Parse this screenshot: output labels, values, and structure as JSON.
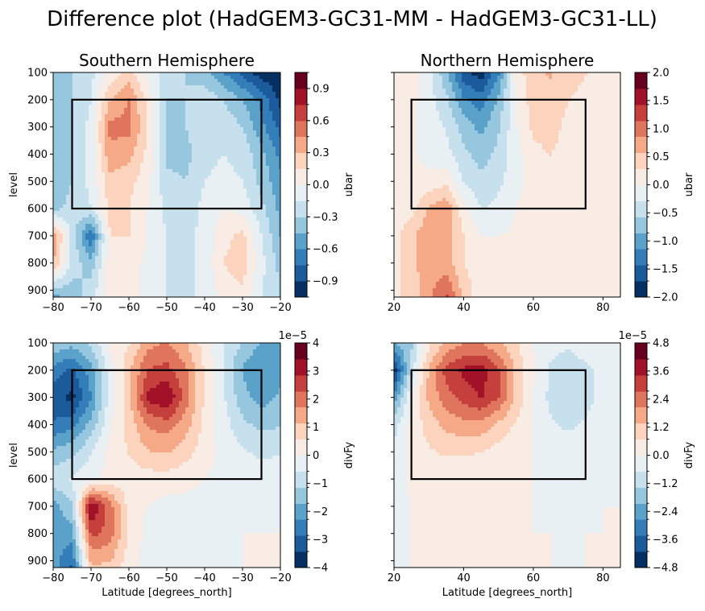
{
  "title": "Difference plot (HadGEM3-GC31-MM - HadGEM3-GC31-LL)",
  "colors": {
    "cmap": [
      "#053061",
      "#2166ac",
      "#4393c3",
      "#92c5de",
      "#d1e5f0",
      "#f7f7f7",
      "#fddbc7",
      "#f4a582",
      "#d6604d",
      "#b2182b",
      "#67001f"
    ],
    "frame": "#000000"
  },
  "chart_data": [
    {
      "type": "contourf",
      "id": "sh_ubar",
      "title": "Southern Hemisphere",
      "xlabel": "",
      "ylabel": "level",
      "xlim": [
        -80,
        -20
      ],
      "ylim": [
        925,
        100
      ],
      "xticks": [
        "-80",
        "-70",
        "-60",
        "-50",
        "-40",
        "-30",
        "-20"
      ],
      "yticks": [
        "100",
        "200",
        "300",
        "400",
        "500",
        "600",
        "700",
        "800",
        "900"
      ],
      "box": {
        "lat": [
          -75,
          -25
        ],
        "level": [
          200,
          600
        ]
      },
      "colorbar": {
        "label": "ubar",
        "range": [
          -1.05,
          1.05
        ],
        "offset": "",
        "ticks": [
          "−0.9",
          "−0.6",
          "−0.3",
          "0.0",
          "0.3",
          "0.6",
          "0.9"
        ],
        "tick_values": [
          -0.9,
          -0.6,
          -0.3,
          0.0,
          0.3,
          0.6,
          0.9
        ]
      },
      "field": {
        "lats": [
          -80,
          -75,
          -70,
          -65,
          -60,
          -55,
          -50,
          -45,
          -40,
          -35,
          -30,
          -25,
          -20
        ],
        "levels": [
          100,
          200,
          300,
          400,
          500,
          600,
          700,
          800,
          925
        ],
        "values": [
          [
            -0.45,
            -0.3,
            -0.2,
            0.05,
            0.2,
            -0.05,
            -0.2,
            -0.3,
            -0.4,
            -0.6,
            -0.8,
            -1.0,
            -1.0
          ],
          [
            -0.45,
            -0.3,
            -0.15,
            0.3,
            0.45,
            0.1,
            -0.3,
            -0.3,
            -0.2,
            -0.3,
            -0.45,
            -0.65,
            -0.95
          ],
          [
            -0.45,
            -0.3,
            -0.1,
            0.5,
            0.5,
            0.15,
            -0.35,
            -0.3,
            -0.2,
            -0.2,
            -0.3,
            -0.55,
            -0.8
          ],
          [
            -0.45,
            -0.3,
            -0.1,
            0.4,
            0.35,
            0.1,
            -0.35,
            -0.35,
            -0.2,
            -0.15,
            -0.2,
            -0.4,
            -0.65
          ],
          [
            -0.4,
            -0.3,
            -0.1,
            0.25,
            0.2,
            0.05,
            -0.25,
            -0.3,
            -0.15,
            -0.1,
            -0.15,
            -0.35,
            -0.55
          ],
          [
            -0.35,
            -0.25,
            -0.15,
            0.2,
            0.15,
            0.0,
            -0.2,
            -0.25,
            -0.1,
            0.0,
            -0.05,
            -0.25,
            -0.5
          ],
          [
            0.45,
            -0.2,
            -0.75,
            0.15,
            0.15,
            0.0,
            -0.15,
            -0.2,
            -0.1,
            0.1,
            0.2,
            -0.15,
            -0.45
          ],
          [
            0.3,
            -0.2,
            -0.4,
            0.1,
            0.1,
            -0.05,
            -0.15,
            -0.2,
            -0.1,
            0.15,
            0.25,
            -0.1,
            -0.35
          ],
          [
            -0.5,
            -0.4,
            -0.2,
            0.1,
            0.1,
            -0.05,
            -0.15,
            -0.2,
            -0.1,
            0.05,
            0.1,
            -0.15,
            -0.3
          ]
        ]
      }
    },
    {
      "type": "contourf",
      "id": "nh_ubar",
      "title": "Northern Hemisphere",
      "xlabel": "",
      "ylabel": "",
      "xlim": [
        20,
        85
      ],
      "ylim": [
        925,
        100
      ],
      "xticks": [
        "20",
        "40",
        "60",
        "80"
      ],
      "yticks": [],
      "box": {
        "lat": [
          25,
          75
        ],
        "level": [
          200,
          600
        ]
      },
      "colorbar": {
        "label": "ubar",
        "range": [
          -2.0,
          2.0
        ],
        "offset": "",
        "ticks": [
          "−2.0",
          "−1.5",
          "−1.0",
          "−0.5",
          "0.0",
          "0.5",
          "1.0",
          "1.5",
          "2.0"
        ],
        "tick_values": [
          -2.0,
          -1.5,
          -1.0,
          -0.5,
          0.0,
          0.5,
          1.0,
          1.5,
          2.0
        ]
      },
      "field": {
        "lats": [
          20,
          25,
          30,
          35,
          40,
          45,
          50,
          55,
          60,
          65,
          70,
          75,
          80,
          85
        ],
        "levels": [
          100,
          200,
          300,
          400,
          500,
          600,
          700,
          800,
          925
        ],
        "values": [
          [
            0.3,
            0.2,
            -0.2,
            -0.8,
            -1.6,
            -1.9,
            -1.2,
            0.1,
            0.5,
            0.6,
            0.4,
            0.3,
            0.2,
            0.1
          ],
          [
            0.2,
            0.1,
            -0.15,
            -0.5,
            -1.1,
            -1.3,
            -0.8,
            0.0,
            0.45,
            0.5,
            0.3,
            0.2,
            0.2,
            0.1
          ],
          [
            0.2,
            0.05,
            -0.15,
            -0.3,
            -0.7,
            -0.95,
            -0.6,
            -0.05,
            0.35,
            0.4,
            0.2,
            0.15,
            0.1,
            0.1
          ],
          [
            0.1,
            0.05,
            -0.1,
            -0.2,
            -0.5,
            -0.7,
            -0.5,
            -0.1,
            0.2,
            0.3,
            0.15,
            0.1,
            0.1,
            0.1
          ],
          [
            0.1,
            0.05,
            0.1,
            0.2,
            -0.3,
            -0.5,
            -0.35,
            -0.1,
            0.15,
            0.2,
            0.1,
            0.1,
            0.1,
            0.1
          ],
          [
            0.1,
            0.15,
            0.6,
            0.8,
            0.1,
            -0.3,
            -0.2,
            0.0,
            0.15,
            0.15,
            0.1,
            0.1,
            0.1,
            0.1
          ],
          [
            0.2,
            0.5,
            0.8,
            0.7,
            0.3,
            0.0,
            0.0,
            0.05,
            0.15,
            0.15,
            0.1,
            0.1,
            0.1,
            0.1
          ],
          [
            0.2,
            0.5,
            0.7,
            0.7,
            0.3,
            0.05,
            0.05,
            0.05,
            0.1,
            0.1,
            0.1,
            0.1,
            0.1,
            0.1
          ],
          [
            0.2,
            0.4,
            0.8,
            1.2,
            0.5,
            0.1,
            0.05,
            0.05,
            0.1,
            0.1,
            0.1,
            0.1,
            0.1,
            0.1
          ]
        ]
      }
    },
    {
      "type": "contourf",
      "id": "sh_divfy",
      "title": "",
      "xlabel": "Latitude [degrees_north]",
      "ylabel": "level",
      "xlim": [
        -80,
        -20
      ],
      "ylim": [
        925,
        100
      ],
      "xticks": [
        "-80",
        "-70",
        "-60",
        "-50",
        "-40",
        "-30",
        "-20"
      ],
      "yticks": [
        "100",
        "200",
        "300",
        "400",
        "500",
        "600",
        "700",
        "800",
        "900"
      ],
      "box": {
        "lat": [
          -75,
          -25
        ],
        "level": [
          200,
          600
        ]
      },
      "colorbar": {
        "label": "divFy",
        "range": [
          -4,
          4
        ],
        "offset": "1e−5",
        "ticks": [
          "−4",
          "−3",
          "−2",
          "−1",
          "0",
          "1",
          "2",
          "3",
          "4"
        ],
        "tick_values": [
          -4,
          -3,
          -2,
          -1,
          0,
          1,
          2,
          3,
          4
        ]
      },
      "field": {
        "lats": [
          -80,
          -75,
          -70,
          -65,
          -60,
          -55,
          -50,
          -45,
          -40,
          -35,
          -30,
          -25,
          -20
        ],
        "levels": [
          100,
          200,
          300,
          400,
          500,
          600,
          700,
          800,
          925
        ],
        "values": [
          [
            -1.2,
            -1.5,
            -1.0,
            0.2,
            0.5,
            1.5,
            1.8,
            1.2,
            0.3,
            -0.5,
            -1.2,
            -1.8,
            -2.0
          ],
          [
            -2.5,
            -3.0,
            -2.0,
            -0.3,
            1.0,
            2.3,
            2.5,
            1.8,
            0.5,
            -0.6,
            -1.8,
            -2.2,
            -2.0
          ],
          [
            -3.2,
            -3.6,
            -2.3,
            -0.3,
            1.0,
            3.0,
            3.5,
            2.0,
            0.5,
            -0.5,
            -1.5,
            -2.0,
            -1.6
          ],
          [
            -2.8,
            -2.5,
            -1.5,
            -0.1,
            0.8,
            1.8,
            2.0,
            1.4,
            0.4,
            -0.3,
            -1.0,
            -1.3,
            -1.2
          ],
          [
            -1.6,
            -1.3,
            -0.6,
            0.2,
            0.6,
            1.1,
            1.2,
            0.8,
            0.3,
            -0.2,
            -0.5,
            -0.7,
            -0.6
          ],
          [
            -0.8,
            -0.5,
            -0.2,
            0.2,
            0.3,
            0.3,
            0.3,
            0.2,
            0.0,
            -0.2,
            -0.3,
            -0.3,
            -0.3
          ],
          [
            -2.0,
            -1.2,
            3.5,
            2.0,
            0.3,
            0.0,
            -0.2,
            -0.2,
            -0.2,
            -0.2,
            -0.1,
            -0.1,
            -0.1
          ],
          [
            -2.0,
            -2.0,
            2.5,
            2.0,
            0.5,
            -0.2,
            -0.4,
            -0.2,
            -0.1,
            -0.1,
            0.0,
            0.0,
            0.0
          ],
          [
            -2.0,
            -3.0,
            1.0,
            1.0,
            0.2,
            -0.2,
            -0.3,
            -0.2,
            -0.1,
            -0.1,
            0.0,
            0.0,
            0.0
          ]
        ]
      }
    },
    {
      "type": "contourf",
      "id": "nh_divfy",
      "title": "",
      "xlabel": "Latitude [degrees_north]",
      "ylabel": "",
      "xlim": [
        20,
        85
      ],
      "ylim": [
        925,
        100
      ],
      "xticks": [
        "20",
        "40",
        "60",
        "80"
      ],
      "yticks": [],
      "box": {
        "lat": [
          25,
          75
        ],
        "level": [
          200,
          600
        ]
      },
      "colorbar": {
        "label": "divFy",
        "range": [
          -4.8,
          4.8
        ],
        "offset": "1e−5",
        "ticks": [
          "−4.8",
          "−3.6",
          "−2.4",
          "−1.2",
          "0.0",
          "1.2",
          "2.4",
          "3.6",
          "4.8"
        ],
        "tick_values": [
          -4.8,
          -3.6,
          -2.4,
          -1.2,
          0.0,
          1.2,
          2.4,
          3.6,
          4.8
        ]
      },
      "field": {
        "lats": [
          20,
          25,
          30,
          35,
          40,
          45,
          50,
          55,
          60,
          65,
          70,
          75,
          80,
          85
        ],
        "levels": [
          100,
          200,
          300,
          400,
          500,
          600,
          700,
          800,
          925
        ],
        "values": [
          [
            -2.0,
            -1.5,
            0.5,
            1.5,
            2.0,
            2.0,
            1.5,
            0.8,
            0.0,
            -0.5,
            -0.6,
            -0.4,
            -0.3,
            -0.2
          ],
          [
            -4.5,
            -1.0,
            1.5,
            3.0,
            3.6,
            3.8,
            2.8,
            1.2,
            0.1,
            -0.8,
            -1.0,
            -0.8,
            -0.5,
            -0.3
          ],
          [
            -2.5,
            0.0,
            1.5,
            2.5,
            3.0,
            3.5,
            2.8,
            1.2,
            0.0,
            -0.9,
            -1.1,
            -0.9,
            -0.5,
            -0.3
          ],
          [
            -1.0,
            0.2,
            1.0,
            1.6,
            1.8,
            1.8,
            1.2,
            0.6,
            0.0,
            -0.6,
            -0.8,
            -0.6,
            -0.4,
            -0.2
          ],
          [
            -0.4,
            0.2,
            0.6,
            0.8,
            0.8,
            0.7,
            0.4,
            0.2,
            0.0,
            -0.3,
            -0.4,
            -0.3,
            -0.2,
            -0.1
          ],
          [
            -0.2,
            0.1,
            0.2,
            0.2,
            0.2,
            0.2,
            0.1,
            0.1,
            0.0,
            -0.1,
            -0.2,
            -0.1,
            -0.1,
            0.0
          ],
          [
            -0.2,
            0.0,
            0.1,
            0.1,
            0.1,
            0.1,
            0.1,
            0.0,
            0.0,
            -0.1,
            -0.1,
            -0.1,
            0.0,
            0.0
          ],
          [
            -0.2,
            0.0,
            0.1,
            0.1,
            0.1,
            0.1,
            0.1,
            0.0,
            0.0,
            0.0,
            -0.1,
            0.0,
            0.0,
            0.0
          ],
          [
            -0.2,
            0.0,
            0.1,
            0.1,
            0.1,
            0.1,
            0.1,
            0.0,
            0.0,
            0.0,
            0.0,
            0.0,
            0.0,
            0.0
          ]
        ]
      }
    }
  ]
}
